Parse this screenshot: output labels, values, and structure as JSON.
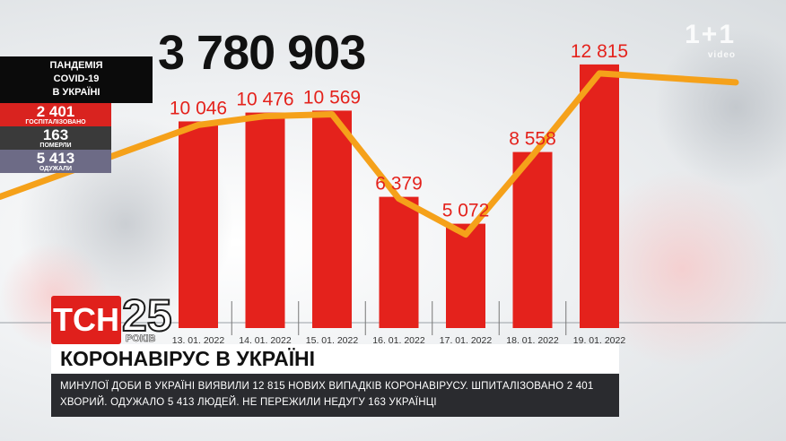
{
  "total_cases": "3 780 903",
  "watermark": {
    "brand": "1+1",
    "tagline": "video"
  },
  "stats_panel": {
    "title_line1": "ПАНДЕМІЯ",
    "title_line2": "COVID-19",
    "title_line3": "В УКРАЇНІ",
    "hospitalized_value": "2 401",
    "hospitalized_label": "ГОСПІТАЛІЗОВАНО",
    "deaths_value": "163",
    "deaths_label": "ПОМЕРЛИ",
    "recovered_value": "5 413",
    "recovered_label": "ОДУЖАЛИ"
  },
  "tsn": {
    "logo": "ТСН",
    "anniversary": "25",
    "years": "РОКІВ"
  },
  "headline": "КОРОНАВІРУС В УКРАЇНІ",
  "subtitle": "МИНУЛОЇ ДОБИ В УКРАЇНІ ВИЯВИЛИ 12 815 НОВИХ ВИПАДКІВ КОРОНАВІРУСУ. ШПИТАЛІЗОВАНО 2 401 ХВОРИЙ. ОДУЖАЛО 5 413 ЛЮДЕЙ. НЕ ПЕРЕЖИЛИ НЕДУГУ 163 УКРАЇНЦІ",
  "colors": {
    "bar": "#e4221c",
    "trend": "#f5a11a",
    "label": "#e4221c",
    "tsn_red": "#e0201c"
  },
  "chart_data": {
    "type": "bar",
    "categories": [
      "13. 01. 2022",
      "14. 01. 2022",
      "15. 01. 2022",
      "16. 01. 2022",
      "17. 01. 2022",
      "18. 01. 2022",
      "19. 01. 2022"
    ],
    "values": [
      10046,
      10476,
      10569,
      6379,
      5072,
      8558,
      12815
    ],
    "value_labels": [
      "10 046",
      "10 476",
      "10 569",
      "6 379",
      "5 072",
      "8 558",
      "12 815"
    ],
    "overlay": "trend-line",
    "ylim": [
      0,
      13500
    ],
    "grid": false,
    "legend": "none"
  }
}
